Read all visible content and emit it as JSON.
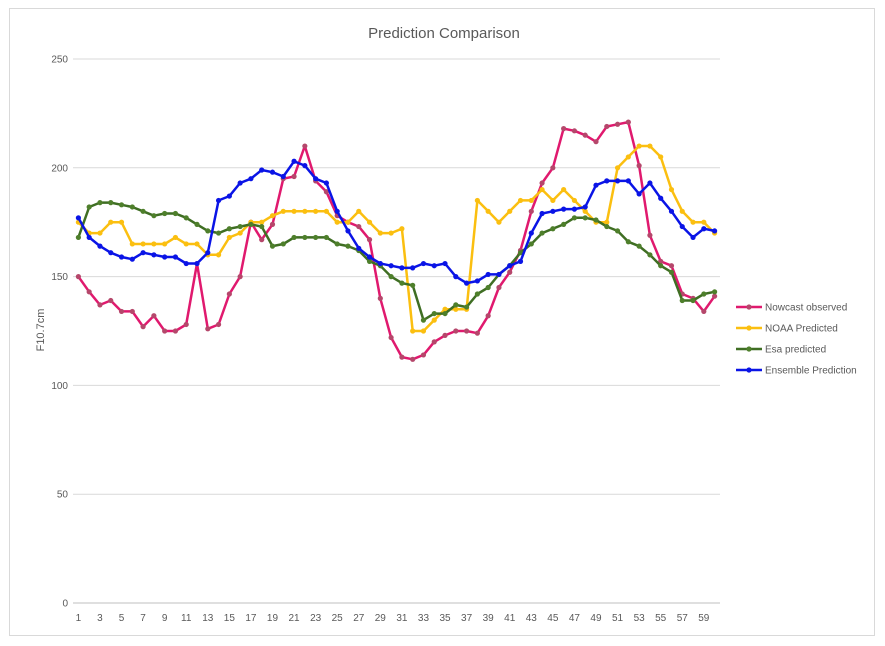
{
  "chart_data": {
    "type": "line",
    "title": "Prediction Comparison",
    "xlabel": "",
    "ylabel": "F10.7cm",
    "ylim": [
      0,
      250
    ],
    "yticks": [
      0,
      50,
      100,
      150,
      200,
      250
    ],
    "x": [
      1,
      2,
      3,
      4,
      5,
      6,
      7,
      8,
      9,
      10,
      11,
      12,
      13,
      14,
      15,
      16,
      17,
      18,
      19,
      20,
      21,
      22,
      23,
      24,
      25,
      26,
      27,
      28,
      29,
      30,
      31,
      32,
      33,
      34,
      35,
      36,
      37,
      38,
      39,
      40,
      41,
      42,
      43,
      44,
      45,
      46,
      47,
      48,
      49,
      50,
      51,
      52,
      53,
      54,
      55,
      56,
      57,
      58,
      59,
      60
    ],
    "xticks": [
      1,
      3,
      5,
      7,
      9,
      11,
      13,
      15,
      17,
      19,
      21,
      23,
      25,
      27,
      29,
      31,
      33,
      35,
      37,
      39,
      41,
      43,
      45,
      47,
      49,
      51,
      53,
      55,
      57,
      59
    ],
    "grid": true,
    "legend_position": "right",
    "series": [
      {
        "name": "Nowcast observed",
        "color": "#e0196e",
        "marker_color": "#b5476b",
        "values": [
          150,
          143,
          137,
          139,
          134,
          134,
          127,
          132,
          125,
          125,
          128,
          156,
          126,
          128,
          142,
          150,
          175,
          167,
          174,
          195,
          196,
          210,
          194,
          189,
          178,
          175,
          173,
          167,
          140,
          122,
          113,
          112,
          114,
          120,
          123,
          125,
          125,
          124,
          132,
          145,
          152,
          162,
          180,
          193,
          200,
          218,
          217,
          215,
          212,
          219,
          220,
          221,
          201,
          169,
          157,
          155,
          142,
          140,
          134,
          141
        ]
      },
      {
        "name": "NOAA Predicted",
        "color": "#fbbf10",
        "marker_color": "#fbbf10",
        "values": [
          175,
          170,
          170,
          175,
          175,
          165,
          165,
          165,
          165,
          168,
          165,
          165,
          160,
          160,
          168,
          170,
          175,
          175,
          178,
          180,
          180,
          180,
          180,
          180,
          175,
          175,
          180,
          175,
          170,
          170,
          172,
          125,
          125,
          130,
          135,
          135,
          135,
          185,
          180,
          175,
          180,
          185,
          185,
          190,
          185,
          190,
          185,
          180,
          175,
          175,
          200,
          205,
          210,
          210,
          205,
          190,
          180,
          175,
          175,
          170
        ]
      },
      {
        "name": "Esa predicted",
        "color": "#3f6e23",
        "marker_color": "#4e7f2b",
        "values": [
          168,
          182,
          184,
          184,
          183,
          182,
          180,
          178,
          179,
          179,
          177,
          174,
          171,
          170,
          172,
          173,
          174,
          173,
          164,
          165,
          168,
          168,
          168,
          168,
          165,
          164,
          162,
          157,
          155,
          150,
          147,
          146,
          130,
          133,
          133,
          137,
          136,
          142,
          145,
          151,
          155,
          161,
          165,
          170,
          172,
          174,
          177,
          177,
          176,
          173,
          171,
          166,
          164,
          160,
          155,
          152,
          139,
          139,
          142,
          143
        ]
      },
      {
        "name": "Ensemble Prediction",
        "color": "#0a14e6",
        "marker_color": "#0a14e6",
        "values": [
          177,
          168,
          164,
          161,
          159,
          158,
          161,
          160,
          159,
          159,
          156,
          156,
          161,
          185,
          187,
          193,
          195,
          199,
          198,
          196,
          203,
          201,
          195,
          193,
          180,
          171,
          163,
          159,
          156,
          155,
          154,
          154,
          156,
          155,
          156,
          150,
          147,
          148,
          151,
          151,
          155,
          157,
          170,
          179,
          180,
          181,
          181,
          182,
          192,
          194,
          194,
          194,
          188,
          193,
          186,
          180,
          173,
          168,
          172,
          171
        ]
      }
    ]
  }
}
